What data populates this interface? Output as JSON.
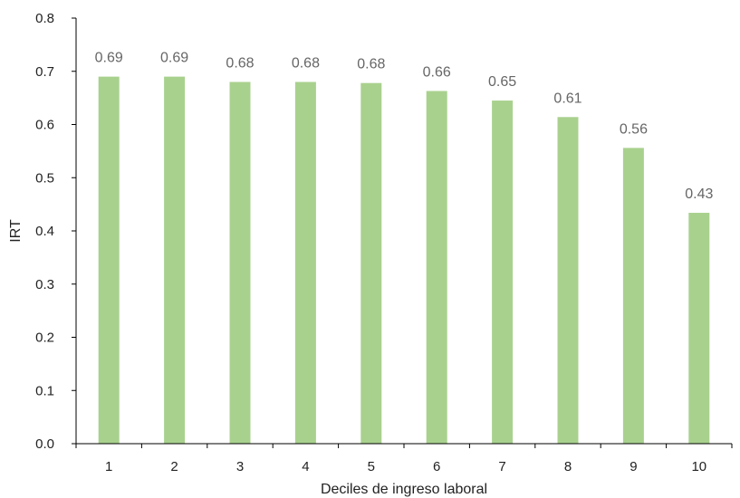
{
  "chart_data": {
    "type": "bar",
    "categories": [
      "1",
      "2",
      "3",
      "4",
      "5",
      "6",
      "7",
      "8",
      "9",
      "10"
    ],
    "series": [
      {
        "values": [
          0.69,
          0.69,
          0.68,
          0.68,
          0.678,
          0.663,
          0.645,
          0.614,
          0.556,
          0.434
        ],
        "labels": [
          "0.69",
          "0.69",
          "0.68",
          "0.68",
          "0.68",
          "0.66",
          "0.65",
          "0.61",
          "0.56",
          "0.43"
        ],
        "color": "#a9d18e"
      }
    ],
    "xlabel": "Deciles de ingreso laboral",
    "ylabel": "IRT",
    "ylim": [
      0,
      0.8
    ],
    "yticks": [
      "0.0",
      "0.1",
      "0.2",
      "0.3",
      "0.4",
      "0.5",
      "0.6",
      "0.7",
      "0.8"
    ],
    "grid": false,
    "legend": "none"
  }
}
